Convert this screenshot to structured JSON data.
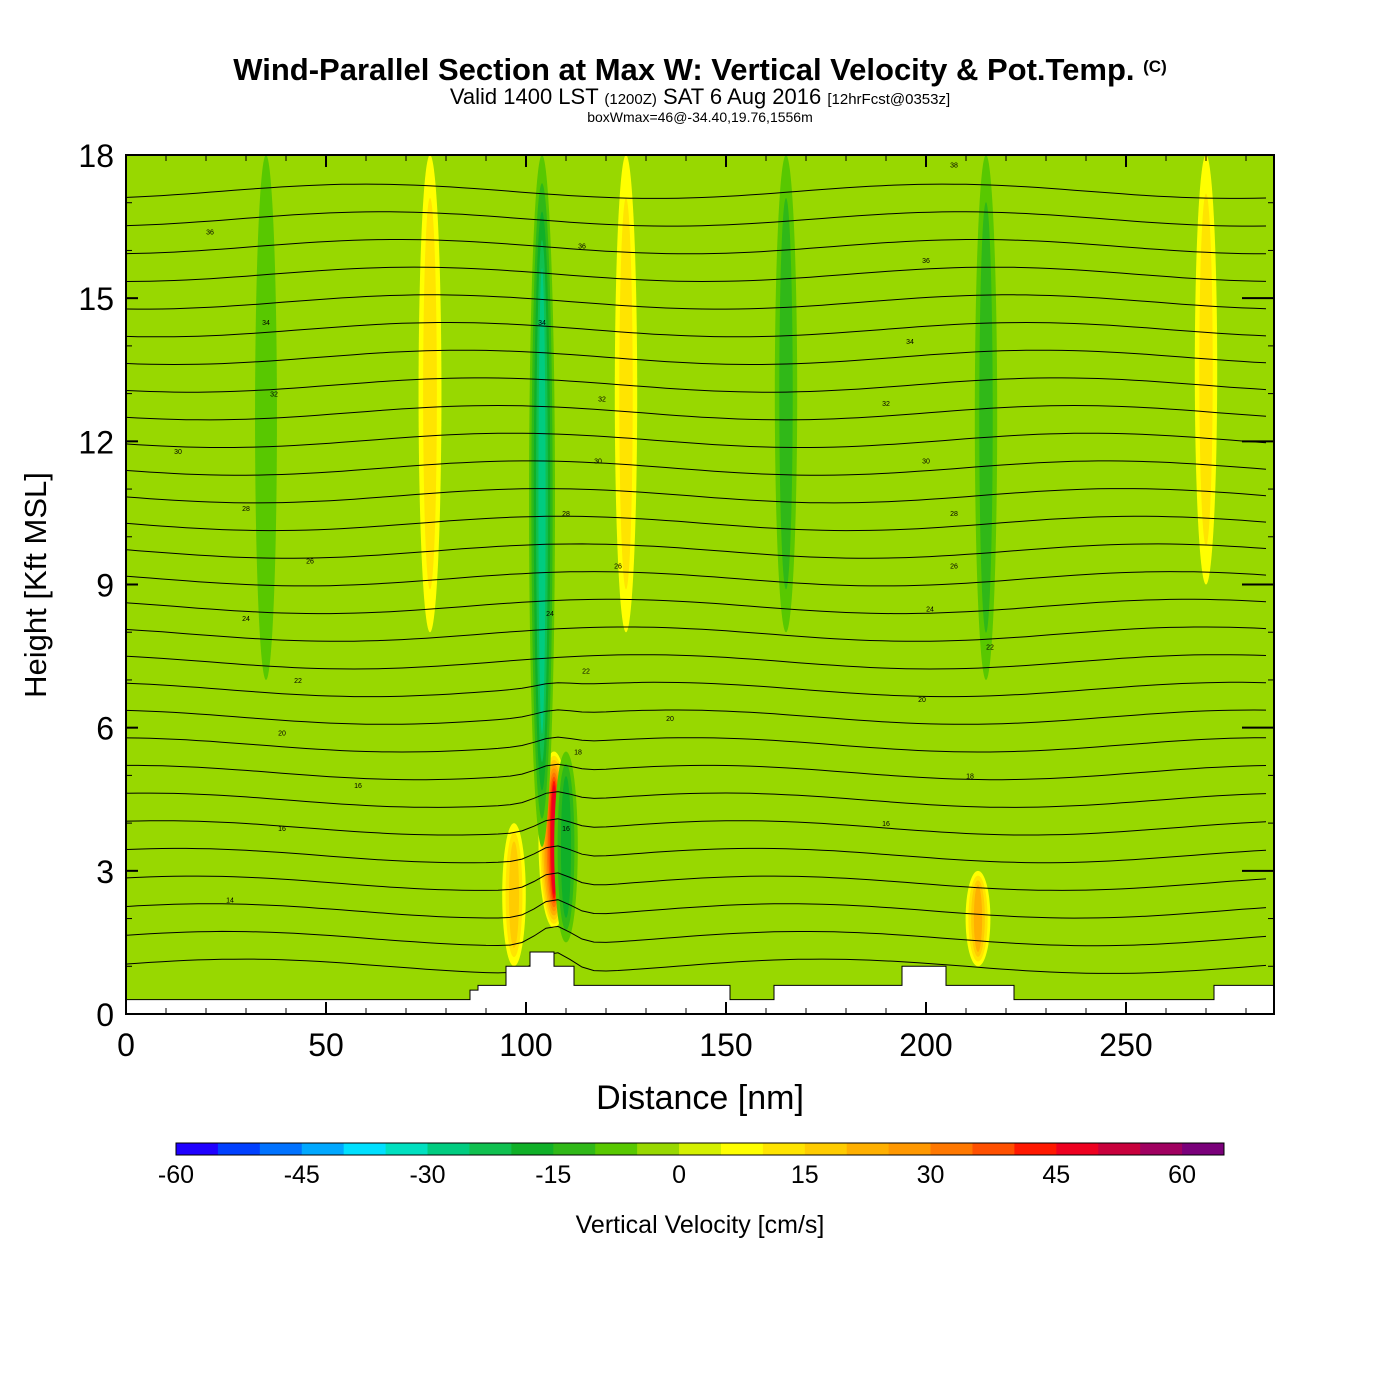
{
  "chart_data": {
    "type": "heatmap",
    "title": "Wind-Parallel Section at Max W: Vertical Velocity & Pot.Temp.",
    "title_mark": "(C)",
    "subtitle": {
      "main_a": "Valid 1400 LST",
      "zulu": "(1200Z)",
      "main_b": "SAT 6 Aug 2016",
      "forecast": "[12hrFcst@0353z]"
    },
    "subsubtitle": "boxWmax=46@-34.40,19.76,1556m",
    "xlabel": "Distance [nm]",
    "ylabel": "Height [Kft MSL]",
    "xlim": [
      0,
      287
    ],
    "ylim": [
      0,
      18
    ],
    "x_ticks": [
      "0",
      "50",
      "100",
      "150",
      "200",
      "250"
    ],
    "y_ticks": [
      "0",
      "3",
      "6",
      "9",
      "12",
      "15",
      "18"
    ],
    "colorbar": {
      "label": "Vertical Velocity [cm/s]",
      "range": [
        -60,
        65
      ],
      "step": 5,
      "tick_labels": [
        "-60",
        "-45",
        "-30",
        "-15",
        "0",
        "15",
        "30",
        "45",
        "60"
      ],
      "colors": [
        "#1f00ff",
        "#0040ff",
        "#0072ff",
        "#00a8ff",
        "#00e0ff",
        "#00e0c0",
        "#00cc80",
        "#10c050",
        "#10b028",
        "#30b818",
        "#58c800",
        "#98d800",
        "#d4f000",
        "#ffff00",
        "#ffe400",
        "#ffcc00",
        "#ffb000",
        "#ff9800",
        "#ff7800",
        "#ff5000",
        "#ff1800",
        "#ee0020",
        "#c8003c",
        "#a00060",
        "#7a007a"
      ]
    },
    "vertical_velocity_features": [
      {
        "x": 107,
        "z_bottom": 1.8,
        "z_top": 5.5,
        "w": 46
      },
      {
        "x": 104,
        "z_bottom": 3.5,
        "z_top": 18,
        "w": -25
      },
      {
        "x": 110,
        "z_bottom": 1.5,
        "z_top": 5.5,
        "w": -15
      },
      {
        "x": 97,
        "z_bottom": 1.0,
        "z_top": 4.0,
        "w": 15
      },
      {
        "x": 35,
        "z_bottom": 7.0,
        "z_top": 18,
        "w": -8
      },
      {
        "x": 76,
        "z_bottom": 8.0,
        "z_top": 18,
        "w": 12
      },
      {
        "x": 125,
        "z_bottom": 8.0,
        "z_top": 18,
        "w": 10
      },
      {
        "x": 165,
        "z_bottom": 8.0,
        "z_top": 18,
        "w": -10
      },
      {
        "x": 215,
        "z_bottom": 7.0,
        "z_top": 18,
        "w": -10
      },
      {
        "x": 213,
        "z_bottom": 1.0,
        "z_top": 3.0,
        "w": 20
      },
      {
        "x": 270,
        "z_bottom": 9.0,
        "z_top": 18,
        "w": 10
      }
    ],
    "theta_labels": [
      {
        "label": "14",
        "x": 26,
        "z": 2.4
      },
      {
        "label": "16",
        "x": 39,
        "z": 3.9
      },
      {
        "label": "16",
        "x": 110,
        "z": 3.9
      },
      {
        "label": "16",
        "x": 190,
        "z": 4.0
      },
      {
        "label": "16",
        "x": 58,
        "z": 4.8
      },
      {
        "label": "18",
        "x": 113,
        "z": 5.5
      },
      {
        "label": "18",
        "x": 211,
        "z": 5.0
      },
      {
        "label": "20",
        "x": 39,
        "z": 5.9
      },
      {
        "label": "20",
        "x": 136,
        "z": 6.2
      },
      {
        "label": "20",
        "x": 199,
        "z": 6.6
      },
      {
        "label": "22",
        "x": 43,
        "z": 7.0
      },
      {
        "label": "22",
        "x": 115,
        "z": 7.2
      },
      {
        "label": "22",
        "x": 216,
        "z": 7.7
      },
      {
        "label": "24",
        "x": 30,
        "z": 8.3
      },
      {
        "label": "24",
        "x": 106,
        "z": 8.4
      },
      {
        "label": "24",
        "x": 201,
        "z": 8.5
      },
      {
        "label": "26",
        "x": 46,
        "z": 9.5
      },
      {
        "label": "26",
        "x": 123,
        "z": 9.4
      },
      {
        "label": "26",
        "x": 207,
        "z": 9.4
      },
      {
        "label": "28",
        "x": 30,
        "z": 10.6
      },
      {
        "label": "28",
        "x": 110,
        "z": 10.5
      },
      {
        "label": "28",
        "x": 207,
        "z": 10.5
      },
      {
        "label": "30",
        "x": 13,
        "z": 11.8
      },
      {
        "label": "30",
        "x": 118,
        "z": 11.6
      },
      {
        "label": "30",
        "x": 200,
        "z": 11.6
      },
      {
        "label": "32",
        "x": 37,
        "z": 13.0
      },
      {
        "label": "32",
        "x": 119,
        "z": 12.9
      },
      {
        "label": "32",
        "x": 190,
        "z": 12.8
      },
      {
        "label": "34",
        "x": 35,
        "z": 14.5
      },
      {
        "label": "34",
        "x": 104,
        "z": 14.5
      },
      {
        "label": "34",
        "x": 196,
        "z": 14.1
      },
      {
        "label": "36",
        "x": 21,
        "z": 16.4
      },
      {
        "label": "36",
        "x": 114,
        "z": 16.1
      },
      {
        "label": "36",
        "x": 200,
        "z": 15.8
      },
      {
        "label": "38",
        "x": 207,
        "z": 17.8
      }
    ],
    "terrain": [
      [
        0,
        0.3
      ],
      [
        86,
        0.3
      ],
      [
        86,
        0.5
      ],
      [
        88,
        0.5
      ],
      [
        88,
        0.6
      ],
      [
        95,
        0.6
      ],
      [
        95,
        1.0
      ],
      [
        101,
        1.0
      ],
      [
        101,
        1.3
      ],
      [
        107,
        1.3
      ],
      [
        107,
        1.0
      ],
      [
        112,
        1.0
      ],
      [
        112,
        0.6
      ],
      [
        151,
        0.6
      ],
      [
        151,
        0.3
      ],
      [
        162,
        0.3
      ],
      [
        162,
        0.6
      ],
      [
        194,
        0.6
      ],
      [
        194,
        1.0
      ],
      [
        205,
        1.0
      ],
      [
        205,
        0.6
      ],
      [
        222,
        0.6
      ],
      [
        222,
        0.3
      ],
      [
        272,
        0.3
      ],
      [
        272,
        0.6
      ],
      [
        287,
        0.6
      ]
    ]
  }
}
